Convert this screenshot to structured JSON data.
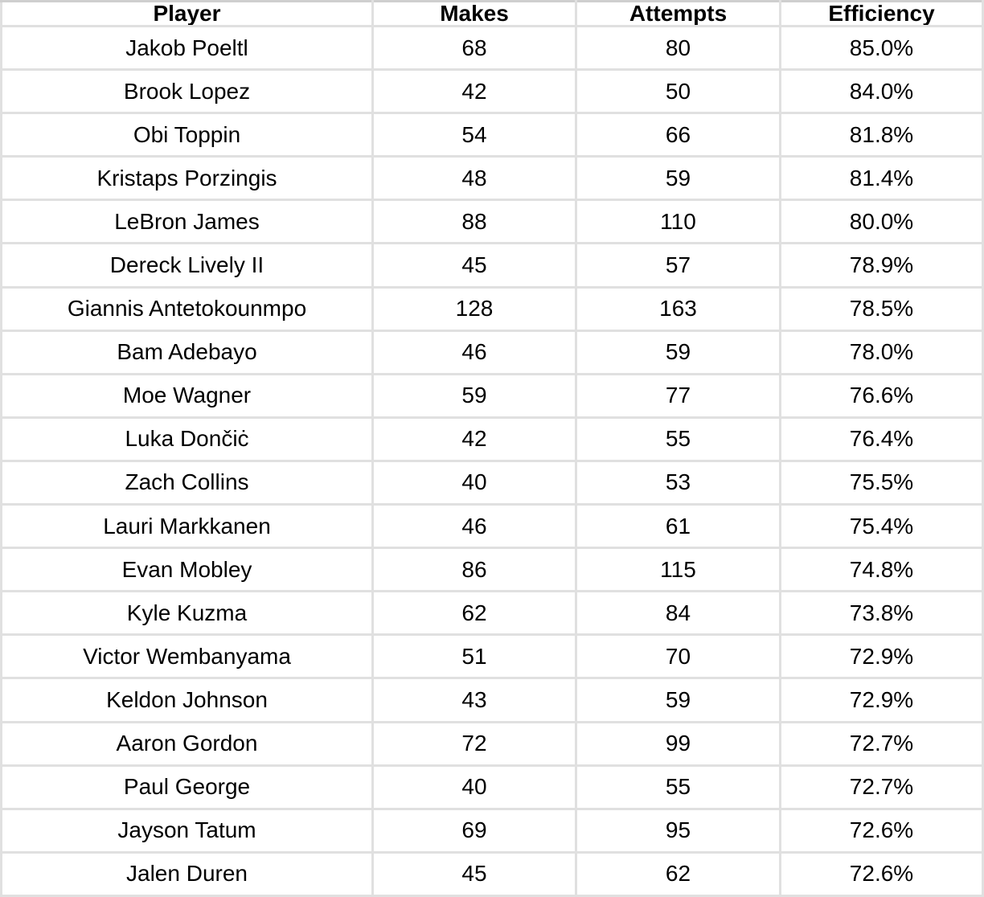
{
  "chart_data": {
    "type": "table",
    "columns": [
      "Player",
      "Makes",
      "Attempts",
      "Efficiency"
    ],
    "rows": [
      {
        "player": "Jakob Poeltl",
        "makes": 68,
        "attempts": 80,
        "efficiency": "85.0%"
      },
      {
        "player": "Brook Lopez",
        "makes": 42,
        "attempts": 50,
        "efficiency": "84.0%"
      },
      {
        "player": "Obi Toppin",
        "makes": 54,
        "attempts": 66,
        "efficiency": "81.8%"
      },
      {
        "player": "Kristaps Porzingis",
        "makes": 48,
        "attempts": 59,
        "efficiency": "81.4%"
      },
      {
        "player": "LeBron James",
        "makes": 88,
        "attempts": 110,
        "efficiency": "80.0%"
      },
      {
        "player": "Dereck Lively II",
        "makes": 45,
        "attempts": 57,
        "efficiency": "78.9%"
      },
      {
        "player": "Giannis Antetokounmpo",
        "makes": 128,
        "attempts": 163,
        "efficiency": "78.5%"
      },
      {
        "player": "Bam Adebayo",
        "makes": 46,
        "attempts": 59,
        "efficiency": "78.0%"
      },
      {
        "player": "Moe Wagner",
        "makes": 59,
        "attempts": 77,
        "efficiency": "76.6%"
      },
      {
        "player": "Luka Dončiċ",
        "makes": 42,
        "attempts": 55,
        "efficiency": "76.4%"
      },
      {
        "player": "Zach Collins",
        "makes": 40,
        "attempts": 53,
        "efficiency": "75.5%"
      },
      {
        "player": "Lauri Markkanen",
        "makes": 46,
        "attempts": 61,
        "efficiency": "75.4%"
      },
      {
        "player": "Evan Mobley",
        "makes": 86,
        "attempts": 115,
        "efficiency": "74.8%"
      },
      {
        "player": "Kyle Kuzma",
        "makes": 62,
        "attempts": 84,
        "efficiency": "73.8%"
      },
      {
        "player": "Victor Wembanyama",
        "makes": 51,
        "attempts": 70,
        "efficiency": "72.9%"
      },
      {
        "player": "Keldon Johnson",
        "makes": 43,
        "attempts": 59,
        "efficiency": "72.9%"
      },
      {
        "player": "Aaron Gordon",
        "makes": 72,
        "attempts": 99,
        "efficiency": "72.7%"
      },
      {
        "player": "Paul George",
        "makes": 40,
        "attempts": 55,
        "efficiency": "72.7%"
      },
      {
        "player": "Jayson Tatum",
        "makes": 69,
        "attempts": 95,
        "efficiency": "72.6%"
      },
      {
        "player": "Jalen Duren",
        "makes": 45,
        "attempts": 62,
        "efficiency": "72.6%"
      }
    ]
  },
  "colors": {
    "grid_line": "#e0e0e0",
    "top_border": "#cfcfcf",
    "text": "#000000",
    "background": "#ffffff"
  }
}
